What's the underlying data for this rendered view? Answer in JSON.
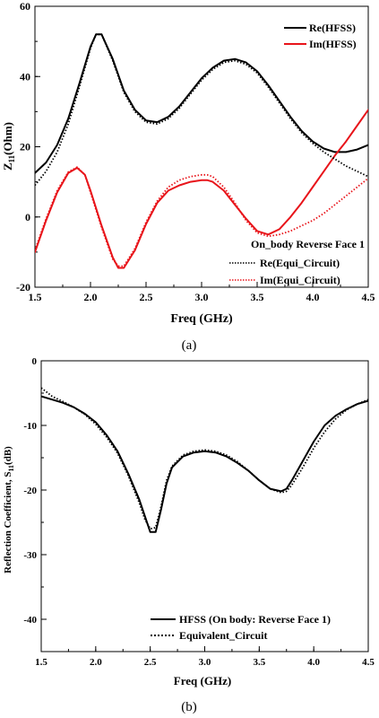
{
  "chart_data": [
    {
      "type": "line",
      "panel_label": "(a)",
      "xlabel": "Freq (GHz)",
      "ylabel_main": "Z",
      "ylabel_sub": "11",
      "ylabel_tail": "(Ohm)",
      "xlim": [
        1.5,
        4.5
      ],
      "ylim": [
        -20,
        60
      ],
      "xticks": [
        1.5,
        2.0,
        2.5,
        3.0,
        3.5,
        4.0,
        4.5
      ],
      "xtick_labels": [
        "1.5",
        "2.0",
        "2.5",
        "3.0",
        "3.5",
        "4.0",
        "4.5"
      ],
      "yticks": [
        -20,
        0,
        20,
        40,
        60
      ],
      "ytick_labels": [
        "-20",
        "0",
        "20",
        "40",
        "60"
      ],
      "legend_top": [
        {
          "name": "Re(HFSS)",
          "color": "#000000",
          "style": "solid"
        },
        {
          "name": "Im(HFSS)",
          "color": "#e8141a",
          "style": "solid"
        }
      ],
      "legend_bottom_title": "On_body Reverse Face 1",
      "legend_bottom": [
        {
          "name": "Re(Equi_Circuit)",
          "color": "#000000",
          "style": "dotted"
        },
        {
          "name": "Im(Equi_Circuit)",
          "color": "#e8141a",
          "style": "dotted"
        }
      ],
      "series": [
        {
          "name": "Re(HFSS)",
          "color": "#000000",
          "style": "solid",
          "x": [
            1.5,
            1.6,
            1.7,
            1.8,
            1.9,
            2.0,
            2.05,
            2.1,
            2.2,
            2.3,
            2.4,
            2.5,
            2.6,
            2.7,
            2.8,
            2.9,
            3.0,
            3.1,
            3.2,
            3.3,
            3.4,
            3.5,
            3.6,
            3.7,
            3.8,
            3.9,
            4.0,
            4.1,
            4.2,
            4.3,
            4.4,
            4.5
          ],
          "y": [
            12.5,
            15.5,
            20.5,
            28,
            38,
            48.5,
            52,
            52,
            45,
            36,
            30.5,
            27.5,
            27,
            28.5,
            31.5,
            35.5,
            39.5,
            42.5,
            44.5,
            45,
            44,
            41.5,
            37.5,
            33,
            28.5,
            24.5,
            21.5,
            19.5,
            18.5,
            18.5,
            19.2,
            20.5
          ]
        },
        {
          "name": "Im(HFSS)",
          "color": "#e8141a",
          "style": "solid",
          "x": [
            1.5,
            1.6,
            1.7,
            1.8,
            1.88,
            1.95,
            2.0,
            2.1,
            2.2,
            2.25,
            2.3,
            2.4,
            2.5,
            2.6,
            2.7,
            2.8,
            2.9,
            3.0,
            3.05,
            3.1,
            3.2,
            3.3,
            3.4,
            3.5,
            3.6,
            3.7,
            3.8,
            3.9,
            4.0,
            4.1,
            4.2,
            4.3,
            4.4,
            4.5
          ],
          "y": [
            -10,
            -1,
            7,
            12.5,
            14,
            12,
            7.5,
            -2.5,
            -11.5,
            -14.5,
            -14.5,
            -9.5,
            -2,
            4,
            7.5,
            9,
            10,
            10.5,
            10.5,
            10,
            7.5,
            3.5,
            -0.5,
            -4,
            -5,
            -3.5,
            0,
            4,
            8.5,
            13,
            17.5,
            21.5,
            26,
            30.5
          ]
        },
        {
          "name": "Re(Equi_Circuit)",
          "color": "#000000",
          "style": "dotted",
          "x": [
            1.5,
            1.6,
            1.7,
            1.8,
            1.9,
            2.0,
            2.05,
            2.1,
            2.2,
            2.3,
            2.4,
            2.5,
            2.6,
            2.7,
            2.8,
            2.9,
            3.0,
            3.1,
            3.2,
            3.3,
            3.4,
            3.5,
            3.6,
            3.7,
            3.8,
            3.9,
            4.0,
            4.1,
            4.2,
            4.3,
            4.4,
            4.5
          ],
          "y": [
            9,
            13,
            18.5,
            26.5,
            37,
            48,
            52,
            52,
            44.5,
            35.5,
            30,
            27,
            26.5,
            28,
            31,
            35,
            39,
            42,
            44,
            44.5,
            43.5,
            41,
            37,
            32.5,
            28,
            24,
            21,
            18.5,
            16.5,
            14.5,
            13,
            11.5
          ]
        },
        {
          "name": "Im(Equi_Circuit)",
          "color": "#e8141a",
          "style": "dotted",
          "x": [
            1.5,
            1.6,
            1.7,
            1.8,
            1.88,
            1.95,
            2.0,
            2.1,
            2.2,
            2.25,
            2.3,
            2.4,
            2.5,
            2.6,
            2.7,
            2.8,
            2.9,
            3.0,
            3.05,
            3.1,
            3.2,
            3.3,
            3.4,
            3.5,
            3.6,
            3.7,
            3.8,
            3.9,
            4.0,
            4.1,
            4.2,
            4.3,
            4.4,
            4.5
          ],
          "y": [
            -9.5,
            -0.5,
            7.5,
            12.8,
            14.2,
            12,
            7,
            -3,
            -12,
            -14,
            -14,
            -9,
            -1.5,
            4.5,
            8.5,
            10.5,
            11.5,
            12,
            12,
            11.5,
            8.5,
            4,
            -1,
            -4.5,
            -5.5,
            -5,
            -4,
            -2.5,
            -1,
            1,
            3.5,
            6,
            8.5,
            11
          ]
        }
      ]
    },
    {
      "type": "line",
      "panel_label": "(b)",
      "xlabel": "Freq (GHz)",
      "ylabel_main": "Reflection Coefficient, S",
      "ylabel_sub": "11",
      "ylabel_tail": "(dB)",
      "xlim": [
        1.5,
        4.5
      ],
      "ylim": [
        -45,
        0
      ],
      "xticks": [
        1.5,
        2.0,
        2.5,
        3.0,
        3.5,
        4.0,
        4.5
      ],
      "xtick_labels": [
        "1.5",
        "2.0",
        "2.5",
        "3.0",
        "3.5",
        "4.0",
        "4.5"
      ],
      "yticks": [
        -40,
        -30,
        -20,
        -10,
        0
      ],
      "ytick_labels": [
        "-40",
        "-30",
        "-20",
        "-10",
        "0"
      ],
      "legend": [
        {
          "name": "HFSS (On body: Reverse Face 1)",
          "color": "#000000",
          "style": "solid"
        },
        {
          "name": "Equivalent_Circuit",
          "color": "#000000",
          "style": "dotted"
        }
      ],
      "series": [
        {
          "name": "HFSS (On body: Reverse Face 1)",
          "color": "#000000",
          "style": "solid",
          "x": [
            1.5,
            1.6,
            1.7,
            1.8,
            1.9,
            2.0,
            2.1,
            2.2,
            2.3,
            2.4,
            2.45,
            2.5,
            2.55,
            2.6,
            2.65,
            2.7,
            2.8,
            2.9,
            3.0,
            3.1,
            3.2,
            3.3,
            3.4,
            3.5,
            3.6,
            3.7,
            3.75,
            3.8,
            3.9,
            4.0,
            4.1,
            4.2,
            4.3,
            4.4,
            4.5
          ],
          "y": [
            -5.5,
            -6,
            -6.5,
            -7.2,
            -8.2,
            -9.5,
            -11.5,
            -14,
            -17.5,
            -21.5,
            -24,
            -26.5,
            -26.5,
            -23,
            -19,
            -16.5,
            -14.8,
            -14.2,
            -14,
            -14.2,
            -14.8,
            -15.8,
            -17,
            -18.5,
            -19.8,
            -20.2,
            -19.8,
            -18.5,
            -15.5,
            -12.5,
            -10,
            -8.5,
            -7.5,
            -6.7,
            -6.2
          ]
        },
        {
          "name": "Equivalent_Circuit",
          "color": "#000000",
          "style": "dotted",
          "x": [
            1.5,
            1.6,
            1.7,
            1.8,
            1.9,
            2.0,
            2.1,
            2.2,
            2.3,
            2.4,
            2.45,
            2.5,
            2.55,
            2.6,
            2.65,
            2.7,
            2.8,
            2.9,
            3.0,
            3.1,
            3.2,
            3.3,
            3.4,
            3.5,
            3.6,
            3.7,
            3.75,
            3.8,
            3.9,
            4.0,
            4.1,
            4.2,
            4.3,
            4.4,
            4.5
          ],
          "y": [
            -4.2,
            -5.5,
            -6.3,
            -7.2,
            -8.3,
            -9.8,
            -11.8,
            -14.3,
            -17.8,
            -22,
            -24.5,
            -26,
            -25.8,
            -22.5,
            -18.5,
            -16.3,
            -14.6,
            -14,
            -13.8,
            -14,
            -14.6,
            -15.6,
            -17,
            -18.5,
            -19.8,
            -20.4,
            -20.2,
            -19.2,
            -16.5,
            -13.5,
            -11,
            -9,
            -7.6,
            -6.7,
            -6
          ]
        }
      ]
    }
  ]
}
